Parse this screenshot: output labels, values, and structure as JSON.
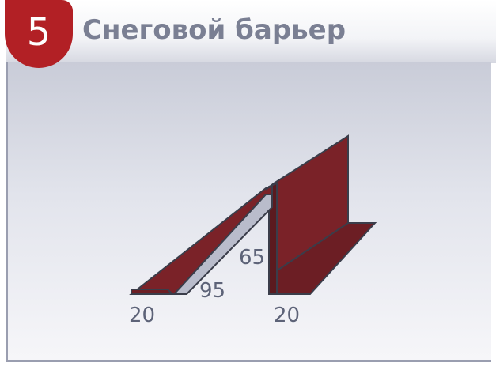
{
  "badge": {
    "number": "5",
    "color": "#b22025"
  },
  "title": "Снеговой барьер",
  "colors": {
    "profile": "#7a2228",
    "profile_dark": "#5b1a1f",
    "inner_face": "#b9bccb",
    "outline": "#3a3d4a",
    "frame": "#9a9eb0",
    "title_text": "#7a7f93"
  },
  "dimensions": {
    "left_flange": "20",
    "slope": "95",
    "height": "65",
    "right_flange": "20"
  }
}
